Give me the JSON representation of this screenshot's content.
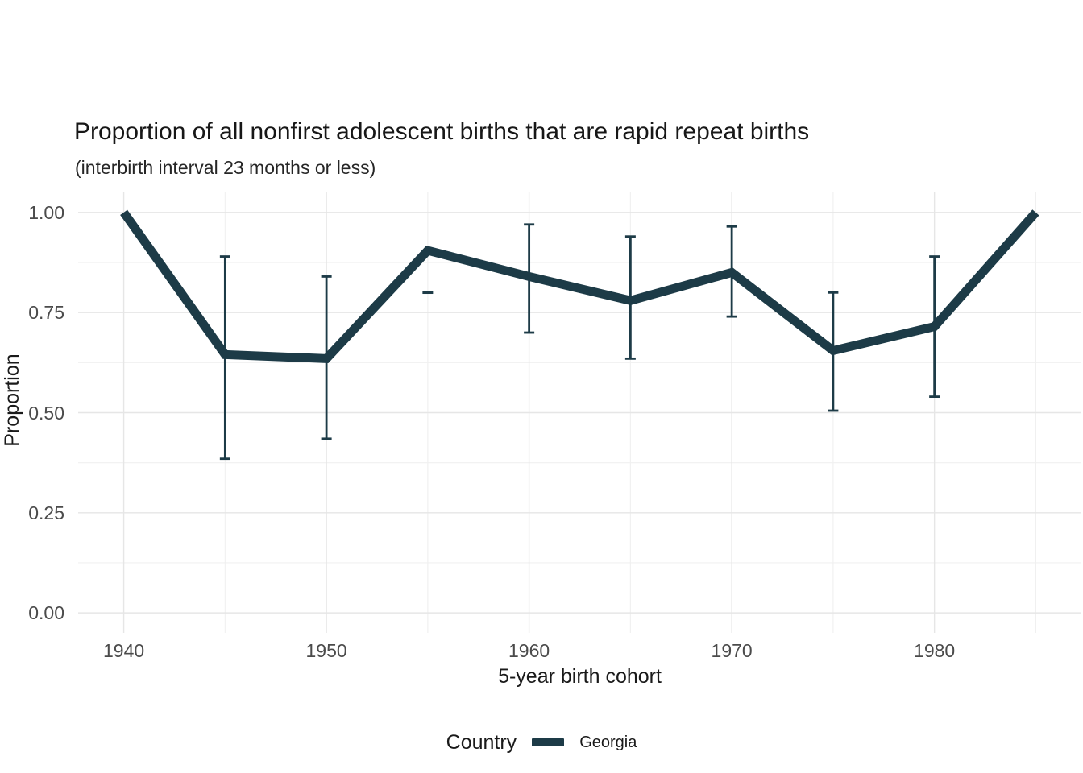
{
  "chart_data": {
    "type": "line",
    "title": "Proportion of all nonfirst adolescent births that are rapid repeat births",
    "subtitle": "(interbirth interval 23 months or less)",
    "xlabel": "5-year birth cohort",
    "ylabel": "Proportion",
    "xlim": [
      1940,
      1985
    ],
    "ylim": [
      0,
      1
    ],
    "grid": true,
    "x_major_ticks": [
      1940,
      1950,
      1960,
      1970,
      1980
    ],
    "x_tick_labels": [
      "1940",
      "1950",
      "1960",
      "1970",
      "1980"
    ],
    "x_minor_gridlines": [
      1945,
      1955,
      1965,
      1975,
      1985
    ],
    "y_major_ticks": [
      0,
      0.25,
      0.5,
      0.75,
      1
    ],
    "y_tick_labels": [
      "0.00",
      "0.25",
      "0.50",
      "0.75",
      "1.00"
    ],
    "y_minor_gridlines": [
      0.125,
      0.375,
      0.625,
      0.875
    ],
    "legend": {
      "title": "Country",
      "position": "bottom",
      "entries": [
        {
          "label": "Georgia",
          "color": "#1d3b47"
        }
      ]
    },
    "series": [
      {
        "name": "Georgia",
        "color": "#1d3b47",
        "points": [
          {
            "x": 1940,
            "y": 1.0,
            "lo": null,
            "hi": null
          },
          {
            "x": 1945,
            "y": 0.645,
            "lo": 0.385,
            "hi": 0.89
          },
          {
            "x": 1950,
            "y": 0.635,
            "lo": 0.435,
            "hi": 0.84
          },
          {
            "x": 1955,
            "y": 0.905,
            "lo": 0.8,
            "hi": 0.8
          },
          {
            "x": 1960,
            "y": 0.84,
            "lo": 0.7,
            "hi": 0.97
          },
          {
            "x": 1965,
            "y": 0.78,
            "lo": 0.635,
            "hi": 0.94
          },
          {
            "x": 1970,
            "y": 0.85,
            "lo": 0.74,
            "hi": 0.965
          },
          {
            "x": 1975,
            "y": 0.655,
            "lo": 0.505,
            "hi": 0.8
          },
          {
            "x": 1980,
            "y": 0.715,
            "lo": 0.54,
            "hi": 0.89
          },
          {
            "x": 1985,
            "y": 1.0,
            "lo": null,
            "hi": null
          }
        ]
      }
    ],
    "colors": {
      "line": "#1d3b47",
      "grid_major": "#e6e6e6",
      "grid_minor": "#f0f0f0",
      "tick_label": "#4b4b4b",
      "text": "#1a1a1a",
      "background": "#ffffff"
    }
  }
}
